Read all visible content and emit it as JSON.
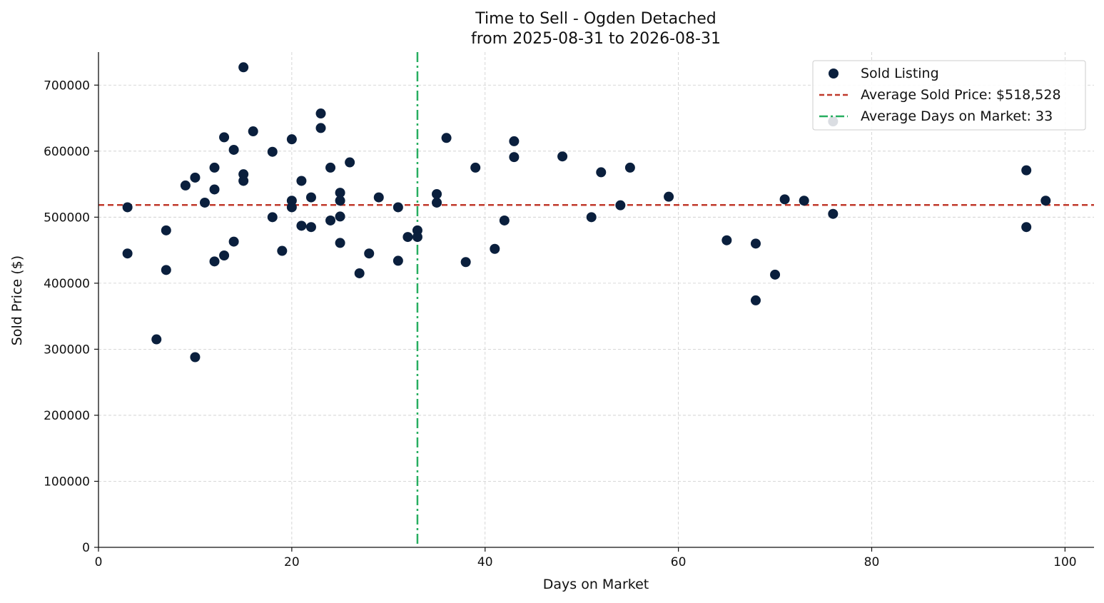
{
  "chart_data": {
    "type": "scatter",
    "title_line1": "Time to Sell - Ogden Detached",
    "title_line2": "from 2025-08-31 to 2026-08-31",
    "xlabel": "Days on Market",
    "ylabel": "Sold Price ($)",
    "xlim": [
      0,
      103
    ],
    "ylim": [
      0,
      750000
    ],
    "x_ticks": [
      0,
      20,
      40,
      60,
      80,
      100
    ],
    "y_ticks": [
      0,
      100000,
      200000,
      300000,
      400000,
      500000,
      600000,
      700000
    ],
    "grid": true,
    "legend_position": "top-right",
    "series": [
      {
        "name": "Sold Listing",
        "color": "#0a1f3d",
        "points": [
          [
            3,
            515000
          ],
          [
            3,
            445000
          ],
          [
            6,
            315000
          ],
          [
            7,
            480000
          ],
          [
            7,
            420000
          ],
          [
            9,
            548000
          ],
          [
            10,
            560000
          ],
          [
            10,
            288000
          ],
          [
            11,
            522000
          ],
          [
            12,
            575000
          ],
          [
            12,
            542000
          ],
          [
            12,
            433000
          ],
          [
            13,
            621000
          ],
          [
            13,
            442000
          ],
          [
            14,
            602000
          ],
          [
            14,
            463000
          ],
          [
            15,
            727000
          ],
          [
            15,
            565000
          ],
          [
            15,
            555000
          ],
          [
            16,
            630000
          ],
          [
            18,
            599000
          ],
          [
            18,
            500000
          ],
          [
            19,
            449000
          ],
          [
            20,
            618000
          ],
          [
            20,
            525000
          ],
          [
            20,
            515000
          ],
          [
            21,
            555000
          ],
          [
            21,
            487000
          ],
          [
            22,
            530000
          ],
          [
            22,
            485000
          ],
          [
            23,
            657000
          ],
          [
            23,
            635000
          ],
          [
            24,
            575000
          ],
          [
            24,
            495000
          ],
          [
            25,
            537000
          ],
          [
            25,
            525000
          ],
          [
            25,
            501000
          ],
          [
            25,
            461000
          ],
          [
            26,
            583000
          ],
          [
            27,
            415000
          ],
          [
            28,
            445000
          ],
          [
            29,
            530000
          ],
          [
            31,
            515000
          ],
          [
            31,
            434000
          ],
          [
            32,
            470000
          ],
          [
            33,
            480000
          ],
          [
            33,
            470000
          ],
          [
            35,
            535000
          ],
          [
            35,
            522000
          ],
          [
            36,
            620000
          ],
          [
            38,
            432000
          ],
          [
            39,
            575000
          ],
          [
            41,
            452000
          ],
          [
            42,
            495000
          ],
          [
            43,
            615000
          ],
          [
            43,
            591000
          ],
          [
            48,
            592000
          ],
          [
            51,
            500000
          ],
          [
            52,
            568000
          ],
          [
            54,
            518000
          ],
          [
            55,
            575000
          ],
          [
            59,
            531000
          ],
          [
            65,
            465000
          ],
          [
            68,
            460000
          ],
          [
            68,
            374000
          ],
          [
            70,
            413000
          ],
          [
            71,
            527000
          ],
          [
            73,
            525000
          ],
          [
            76,
            505000
          ],
          [
            76,
            645000
          ],
          [
            96,
            571000
          ],
          [
            96,
            485000
          ],
          [
            98,
            525000
          ]
        ]
      }
    ],
    "reference_lines": [
      {
        "orientation": "horizontal",
        "value": 518528,
        "label": "Average Sold Price: $518,528",
        "color": "#c0392b",
        "style": "dashed"
      },
      {
        "orientation": "vertical",
        "value": 33,
        "label": "Average Days on Market: 33",
        "color": "#27ae60",
        "style": "dash-dot"
      }
    ]
  }
}
